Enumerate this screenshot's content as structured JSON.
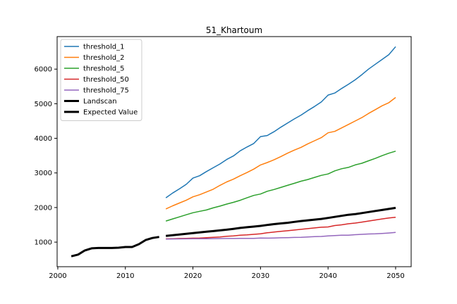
{
  "chart_data": {
    "type": "line",
    "title": "51_Khartoum",
    "xlabel": "",
    "ylabel": "",
    "xlim": [
      1999.9,
      2052.3
    ],
    "ylim": [
      290,
      6940
    ],
    "xticks": [
      2000,
      2010,
      2020,
      2030,
      2040,
      2050
    ],
    "yticks": [
      1000,
      2000,
      3000,
      4000,
      5000,
      6000
    ],
    "legend_position": "top-left",
    "series": [
      {
        "name": "threshold_1",
        "color": "#1f77b4",
        "linewidth": 1.5,
        "x": [
          2016,
          2017,
          2018,
          2019,
          2020,
          2021,
          2022,
          2023,
          2024,
          2025,
          2026,
          2027,
          2028,
          2029,
          2030,
          2031,
          2032,
          2033,
          2034,
          2035,
          2036,
          2037,
          2038,
          2039,
          2040,
          2041,
          2042,
          2043,
          2044,
          2045,
          2046,
          2047,
          2048,
          2049,
          2050
        ],
        "values": [
          2280,
          2420,
          2540,
          2670,
          2850,
          2920,
          3040,
          3150,
          3260,
          3390,
          3490,
          3640,
          3750,
          3850,
          4050,
          4080,
          4190,
          4320,
          4440,
          4560,
          4670,
          4800,
          4920,
          5050,
          5250,
          5310,
          5440,
          5560,
          5690,
          5840,
          6000,
          6140,
          6280,
          6420,
          6650
        ]
      },
      {
        "name": "threshold_2",
        "color": "#ff7f0e",
        "linewidth": 1.5,
        "x": [
          2016,
          2017,
          2018,
          2019,
          2020,
          2021,
          2022,
          2023,
          2024,
          2025,
          2026,
          2027,
          2028,
          2029,
          2030,
          2031,
          2032,
          2033,
          2034,
          2035,
          2036,
          2037,
          2038,
          2039,
          2040,
          2041,
          2042,
          2043,
          2044,
          2045,
          2046,
          2047,
          2048,
          2049,
          2050
        ],
        "values": [
          1960,
          2050,
          2130,
          2210,
          2310,
          2370,
          2450,
          2530,
          2640,
          2740,
          2820,
          2920,
          3010,
          3110,
          3230,
          3300,
          3380,
          3470,
          3570,
          3660,
          3740,
          3840,
          3930,
          4020,
          4160,
          4200,
          4300,
          4400,
          4500,
          4600,
          4720,
          4830,
          4940,
          5030,
          5180
        ]
      },
      {
        "name": "threshold_5",
        "color": "#2ca02c",
        "linewidth": 1.5,
        "x": [
          2016,
          2017,
          2018,
          2019,
          2020,
          2021,
          2022,
          2023,
          2024,
          2025,
          2026,
          2027,
          2028,
          2029,
          2030,
          2031,
          2032,
          2033,
          2034,
          2035,
          2036,
          2037,
          2038,
          2039,
          2040,
          2041,
          2042,
          2043,
          2044,
          2045,
          2046,
          2047,
          2048,
          2049,
          2050
        ],
        "values": [
          1610,
          1670,
          1730,
          1790,
          1850,
          1890,
          1930,
          1990,
          2040,
          2100,
          2150,
          2210,
          2280,
          2350,
          2390,
          2470,
          2520,
          2580,
          2640,
          2700,
          2760,
          2810,
          2870,
          2930,
          2970,
          3060,
          3120,
          3160,
          3230,
          3280,
          3350,
          3420,
          3500,
          3570,
          3630
        ]
      },
      {
        "name": "threshold_50",
        "color": "#d62728",
        "linewidth": 1.5,
        "x": [
          2016,
          2017,
          2018,
          2019,
          2020,
          2021,
          2022,
          2023,
          2024,
          2025,
          2026,
          2027,
          2028,
          2029,
          2030,
          2031,
          2032,
          2033,
          2034,
          2035,
          2036,
          2037,
          2038,
          2039,
          2040,
          2041,
          2042,
          2043,
          2044,
          2045,
          2046,
          2047,
          2048,
          2049,
          2050
        ],
        "values": [
          1095,
          1100,
          1105,
          1110,
          1115,
          1120,
          1130,
          1140,
          1150,
          1170,
          1180,
          1200,
          1210,
          1225,
          1240,
          1270,
          1290,
          1310,
          1330,
          1350,
          1370,
          1390,
          1410,
          1430,
          1440,
          1480,
          1500,
          1530,
          1550,
          1580,
          1610,
          1640,
          1670,
          1700,
          1720
        ]
      },
      {
        "name": "threshold_75",
        "color": "#9467bd",
        "linewidth": 1.5,
        "x": [
          2016,
          2017,
          2018,
          2019,
          2020,
          2021,
          2022,
          2023,
          2024,
          2025,
          2026,
          2027,
          2028,
          2029,
          2030,
          2031,
          2032,
          2033,
          2034,
          2035,
          2036,
          2037,
          2038,
          2039,
          2040,
          2041,
          2042,
          2043,
          2044,
          2045,
          2046,
          2047,
          2048,
          2049,
          2050
        ],
        "values": [
          1090,
          1092,
          1094,
          1096,
          1098,
          1100,
          1100,
          1102,
          1104,
          1106,
          1106,
          1108,
          1110,
          1110,
          1120,
          1115,
          1120,
          1125,
          1130,
          1135,
          1140,
          1150,
          1160,
          1165,
          1180,
          1190,
          1200,
          1200,
          1215,
          1225,
          1235,
          1240,
          1250,
          1265,
          1280
        ]
      },
      {
        "name": "Landscan",
        "color": "#000000",
        "linewidth": 3,
        "x": [
          2002,
          2003,
          2004,
          2005,
          2006,
          2007,
          2008,
          2009,
          2010,
          2011,
          2012,
          2013,
          2014,
          2015
        ],
        "values": [
          590,
          640,
          760,
          820,
          830,
          830,
          830,
          840,
          860,
          860,
          940,
          1060,
          1120,
          1150
        ]
      },
      {
        "name": "Expected Value",
        "color": "#000000",
        "linewidth": 3,
        "x": [
          2016,
          2017,
          2018,
          2019,
          2020,
          2021,
          2022,
          2023,
          2024,
          2025,
          2026,
          2027,
          2028,
          2029,
          2030,
          2031,
          2032,
          2033,
          2034,
          2035,
          2036,
          2037,
          2038,
          2039,
          2040,
          2041,
          2042,
          2043,
          2044,
          2045,
          2046,
          2047,
          2048,
          2049,
          2050
        ],
        "values": [
          1180,
          1200,
          1220,
          1240,
          1260,
          1280,
          1300,
          1320,
          1340,
          1360,
          1385,
          1410,
          1430,
          1450,
          1470,
          1495,
          1520,
          1540,
          1560,
          1585,
          1610,
          1630,
          1650,
          1670,
          1700,
          1730,
          1760,
          1790,
          1810,
          1840,
          1870,
          1900,
          1930,
          1960,
          1990
        ]
      }
    ]
  }
}
